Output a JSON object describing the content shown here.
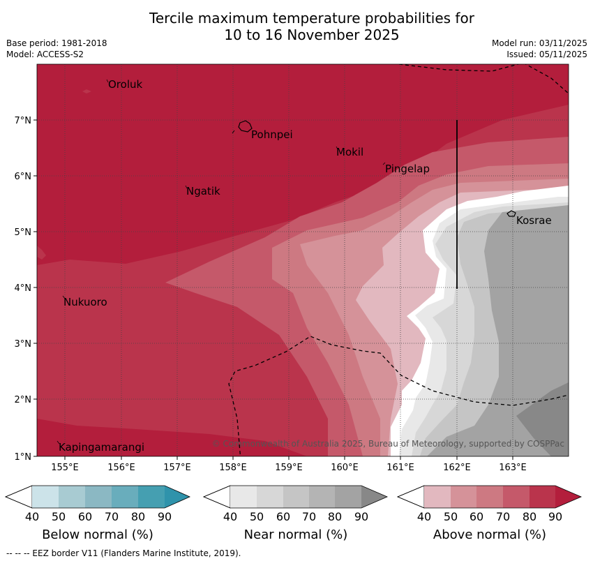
{
  "title_line1": "Tercile maximum temperature probabilities for",
  "title_line2": "10 to 16 November 2025",
  "meta": {
    "base_period": "Base period: 1981-2018",
    "model": "Model: ACCESS-S2",
    "model_run": "Model run: 03/11/2025",
    "issued": "Issued: 05/11/2025"
  },
  "map": {
    "lon_labels": [
      "155°E",
      "156°E",
      "157°E",
      "158°E",
      "159°E",
      "160°E",
      "161°E",
      "162°E",
      "163°E"
    ],
    "lat_labels": [
      "7°N",
      "6°N",
      "5°N",
      "4°N",
      "3°N",
      "2°N",
      "1°N"
    ],
    "places": {
      "oroluk": "Oroluk",
      "pohnpei": "Pohnpei",
      "mokil": "Mokil",
      "pingelap": "Pingelap",
      "ngatik": "Ngatik",
      "kosrae": "Kosrae",
      "nukuoro": "Nukuoro",
      "kapingamarangi": "Kapingamarangi"
    },
    "copyright": "© Commonwealth of Australia 2025, Bureau of Meteorology, supported by COSPPac"
  },
  "legends": {
    "below": {
      "title": "Below normal (%)",
      "ticks": [
        "40",
        "50",
        "60",
        "70",
        "80",
        "90"
      ],
      "colors": [
        "#cce3e9",
        "#a8cbd2",
        "#8bb8c3",
        "#69adbc",
        "#459fb1",
        "#2f93ab"
      ]
    },
    "near": {
      "title": "Near normal (%)",
      "ticks": [
        "40",
        "50",
        "60",
        "70",
        "80",
        "90"
      ],
      "colors": [
        "#e8e8e8",
        "#d7d7d7",
        "#c5c5c5",
        "#b4b4b4",
        "#a3a3a3",
        "#888888"
      ]
    },
    "above": {
      "title": "Above normal (%)",
      "ticks": [
        "40",
        "50",
        "60",
        "70",
        "80",
        "90"
      ],
      "colors": [
        "#e2b8bf",
        "#d59299",
        "#cd7982",
        "#c5596a",
        "#ba344c",
        "#b31e3c"
      ]
    }
  },
  "footnote": "--  --  -- EEZ border V11 (Flanders Marine Institute, 2019)."
}
